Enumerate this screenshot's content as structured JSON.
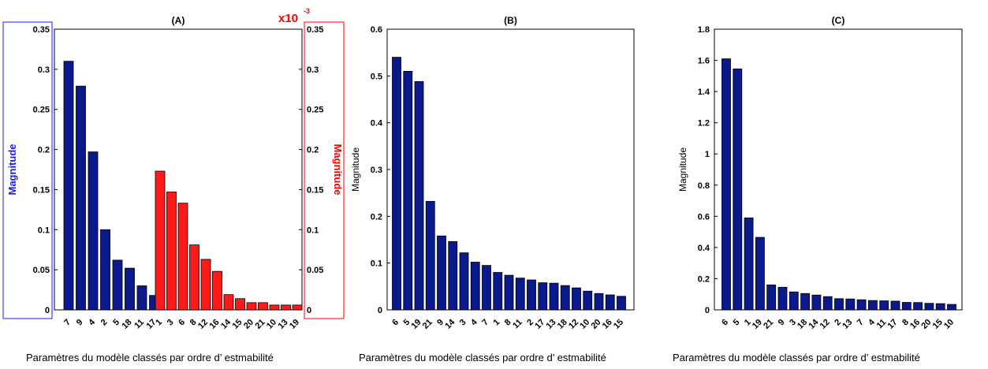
{
  "colors": {
    "blue_bar": "#0a1a8c",
    "red_bar": "#ff1a1a",
    "blue_label": "#1a1aff",
    "red_label": "#ff0000"
  },
  "captions": [
    "Paramètres du modèle classés par ordre d’ estmabilité",
    "Paramètres du modèle classés par ordre d’ estmabilité",
    "Paramètres du modèle classés par ordre d’ estmabilité"
  ],
  "chart_data": [
    {
      "type": "bar",
      "title": "(A)",
      "ylabel_left": "Magnitude",
      "ylabel_right": "Magnitude",
      "right_axis_multiplier": "x10",
      "right_axis_exponent": "-3",
      "ylim": [
        0,
        0.35
      ],
      "yticks": [
        "0",
        "0.05",
        "0.1",
        "0.15",
        "0.2",
        "0.25",
        "0.3",
        "0.35"
      ],
      "series": [
        {
          "axis": "left",
          "color": "blue",
          "categories": [
            "7",
            "9",
            "4",
            "2",
            "5",
            "18",
            "11",
            "17"
          ],
          "values": [
            0.31,
            0.279,
            0.197,
            0.1,
            0.062,
            0.052,
            0.03,
            0.018
          ]
        },
        {
          "axis": "right",
          "color": "red",
          "categories": [
            "1",
            "3",
            "6",
            "8",
            "12",
            "16",
            "14",
            "15",
            "20",
            "21",
            "10",
            "13",
            "19"
          ],
          "values": [
            0.173,
            0.147,
            0.133,
            0.081,
            0.063,
            0.048,
            0.019,
            0.014,
            0.009,
            0.009,
            0.006,
            0.006,
            0.006
          ]
        }
      ]
    },
    {
      "type": "bar",
      "title": "(B)",
      "ylabel": "Magnitude",
      "ylim": [
        0,
        0.6
      ],
      "yticks": [
        "0",
        "0.1",
        "0.2",
        "0.3",
        "0.4",
        "0.5",
        "0.6"
      ],
      "categories": [
        "6",
        "5",
        "19",
        "21",
        "9",
        "14",
        "3",
        "4",
        "7",
        "1",
        "8",
        "11",
        "2",
        "17",
        "13",
        "18",
        "12",
        "10",
        "20",
        "16",
        "15"
      ],
      "values": [
        0.54,
        0.51,
        0.488,
        0.232,
        0.158,
        0.146,
        0.122,
        0.102,
        0.095,
        0.08,
        0.074,
        0.068,
        0.064,
        0.058,
        0.057,
        0.052,
        0.047,
        0.04,
        0.035,
        0.032,
        0.029
      ]
    },
    {
      "type": "bar",
      "title": "(C)",
      "ylabel": "Magnitude",
      "ylim": [
        0,
        1.8
      ],
      "yticks": [
        "0",
        "0.2",
        "0.4",
        "0.6",
        "0.8",
        "1",
        "1.2",
        "1.4",
        "1.6",
        "1.8"
      ],
      "categories": [
        "6",
        "5",
        "1",
        "19",
        "21",
        "9",
        "3",
        "18",
        "14",
        "12",
        "2",
        "13",
        "7",
        "4",
        "11",
        "17",
        "8",
        "16",
        "20",
        "15",
        "10"
      ],
      "values": [
        1.61,
        1.545,
        0.59,
        0.465,
        0.16,
        0.145,
        0.115,
        0.105,
        0.095,
        0.085,
        0.072,
        0.07,
        0.065,
        0.06,
        0.058,
        0.056,
        0.048,
        0.047,
        0.042,
        0.04,
        0.035
      ]
    }
  ]
}
